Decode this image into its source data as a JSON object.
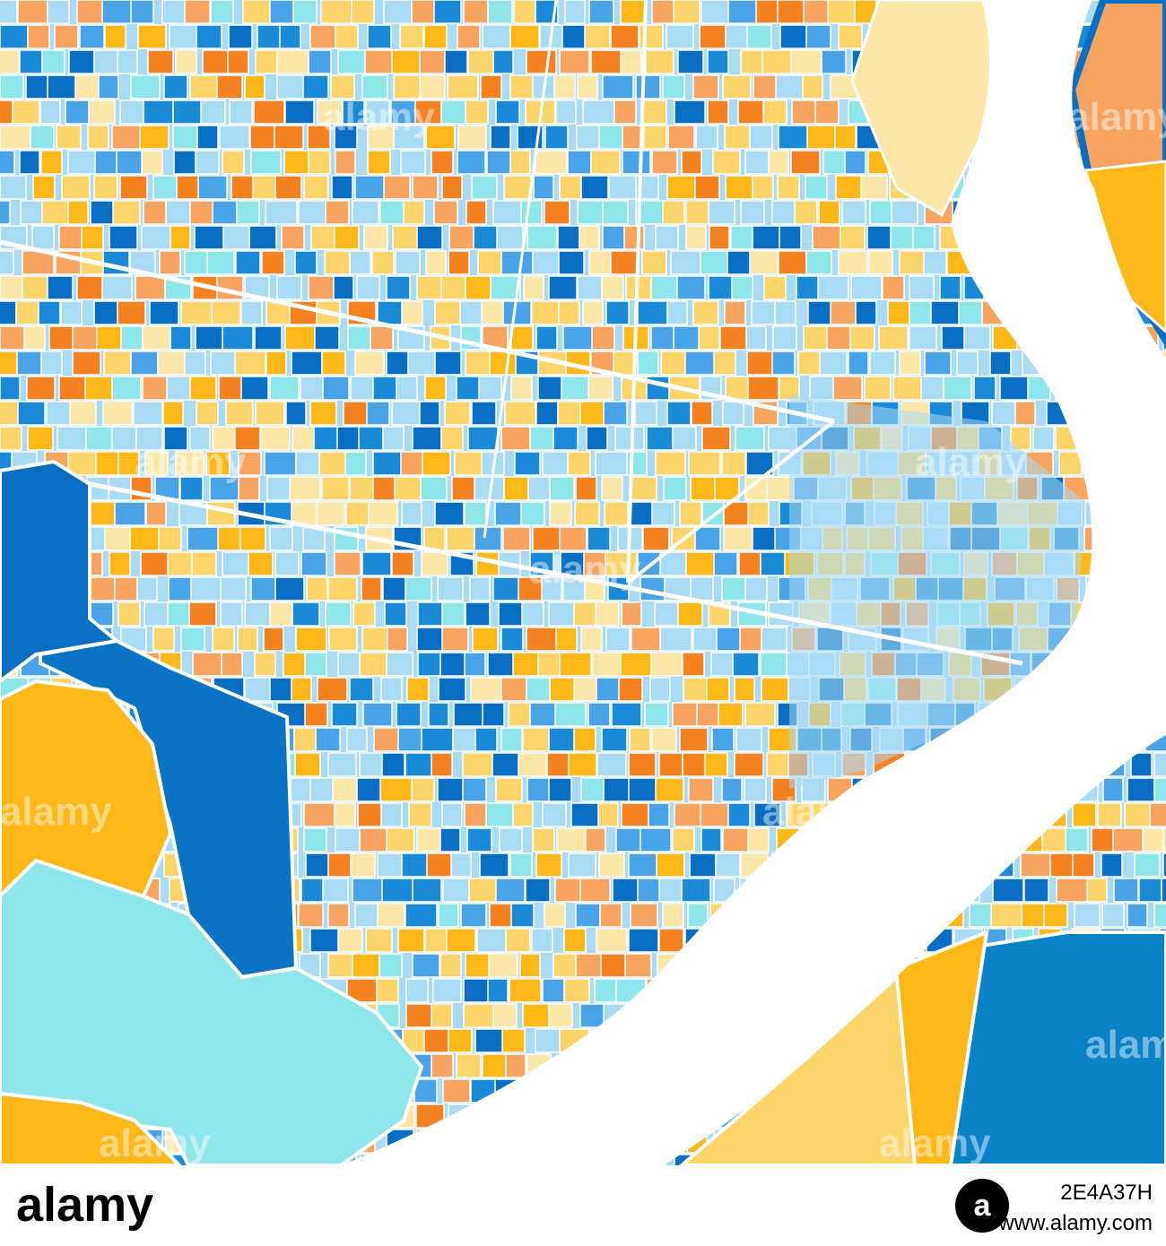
{
  "watermarks": [
    "alamy",
    "alamy",
    "alamy",
    "alamy",
    "alamy",
    "alamy",
    "alamy",
    "alamy",
    "alamy",
    "alamy"
  ],
  "banner": {
    "logo": "alamy",
    "badge": "a",
    "image_id": "2E4A37H",
    "url": "www.alamy.com"
  }
}
